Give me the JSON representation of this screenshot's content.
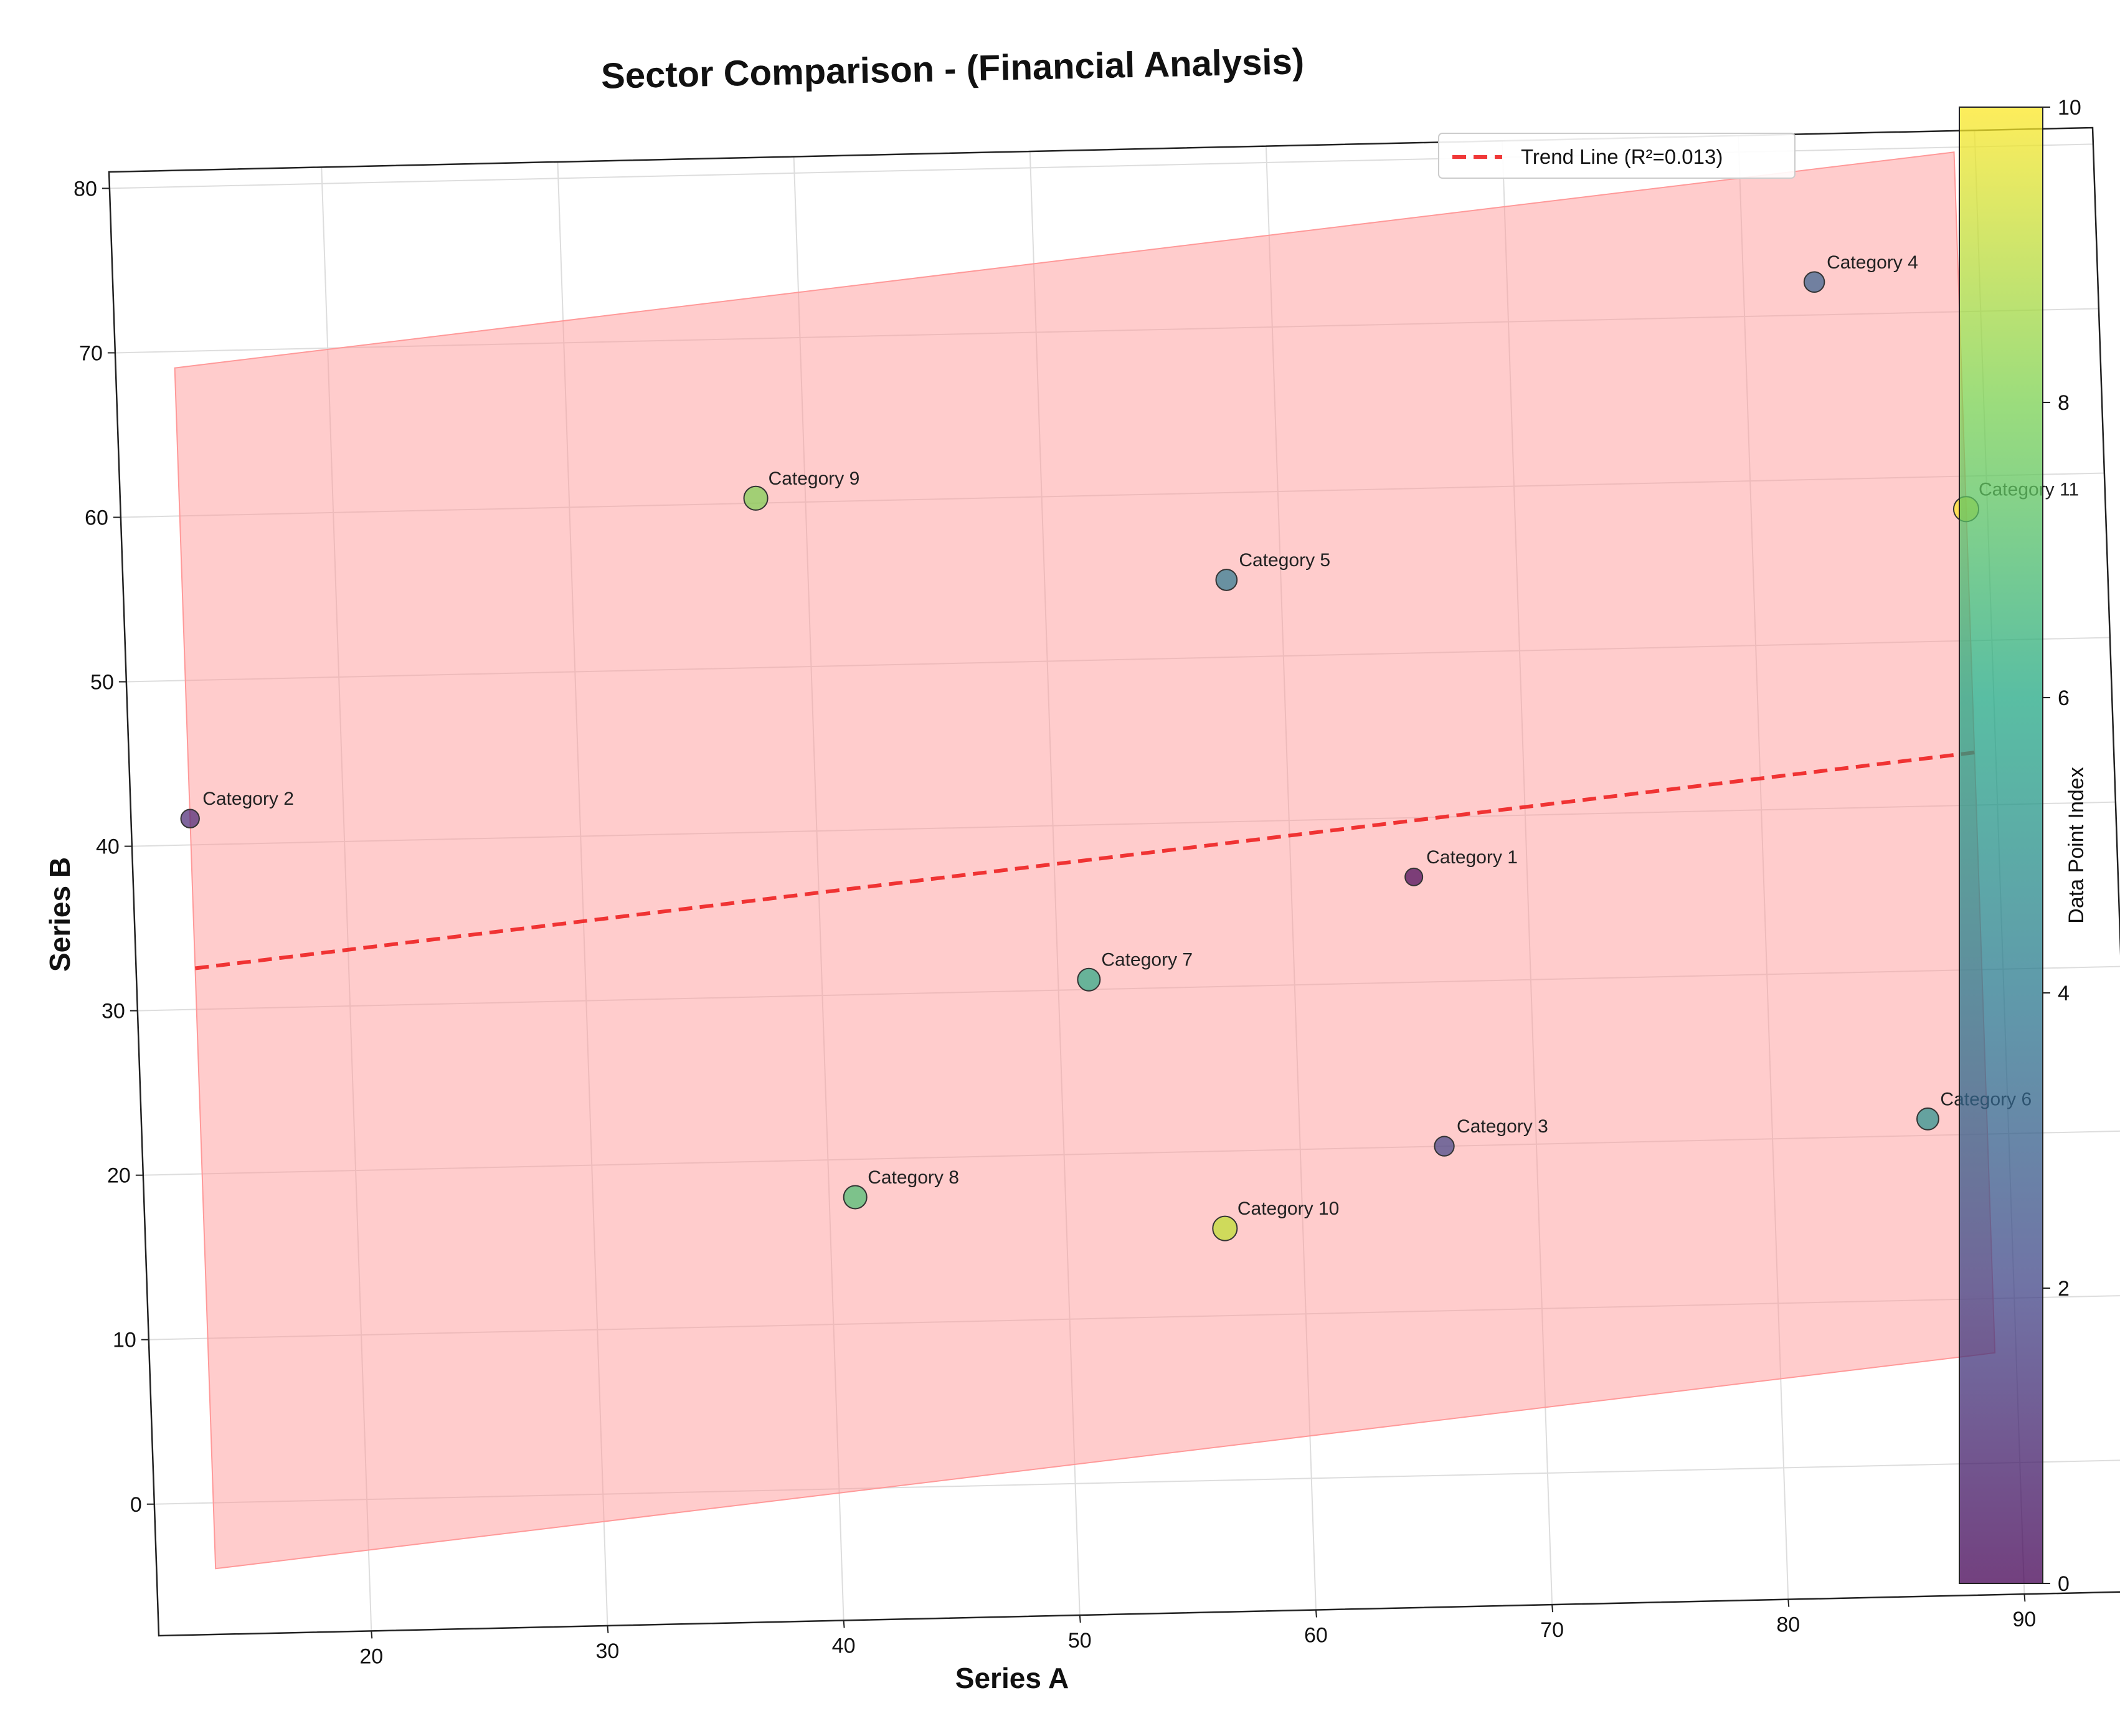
{
  "chart_data": {
    "type": "scatter",
    "title": "Sector Comparison - (Financial Analysis)",
    "xlabel": "Series A",
    "ylabel": "Series B",
    "xlim": [
      11,
      95
    ],
    "ylim": [
      -8,
      81
    ],
    "xticks": [
      20,
      30,
      40,
      50,
      60,
      70,
      80,
      90
    ],
    "yticks": [
      0,
      10,
      20,
      30,
      40,
      50,
      60,
      70,
      80
    ],
    "grid": true,
    "legend": {
      "position": "top-right",
      "entries": [
        "Trend Line (R²=0.013)"
      ]
    },
    "colorbar": {
      "label": "Data Point Index",
      "range": [
        0,
        10
      ],
      "ticks": [
        0,
        2,
        4,
        6,
        8,
        10
      ],
      "colormap": "viridis"
    },
    "points": [
      {
        "label": "Category 1",
        "x": 65.2,
        "y": 36.4,
        "color_value": 0,
        "size": 1.0
      },
      {
        "label": "Category 2",
        "x": 13.5,
        "y": 41.6,
        "color_value": 1,
        "size": 1.1
      },
      {
        "label": "Category 3",
        "x": 66.1,
        "y": 20.0,
        "color_value": 2,
        "size": 1.25
      },
      {
        "label": "Category 4",
        "x": 83.0,
        "y": 72.0,
        "color_value": 3,
        "size": 1.35
      },
      {
        "label": "Category 5",
        "x": 57.7,
        "y": 54.7,
        "color_value": 4,
        "size": 1.45
      },
      {
        "label": "Category 6",
        "x": 86.6,
        "y": 21.0,
        "color_value": 5,
        "size": 1.55
      },
      {
        "label": "Category 7",
        "x": 51.3,
        "y": 30.6,
        "color_value": 6,
        "size": 1.65
      },
      {
        "label": "Category 8",
        "x": 41.1,
        "y": 17.7,
        "color_value": 7,
        "size": 1.75
      },
      {
        "label": "Category 9",
        "x": 37.9,
        "y": 60.3,
        "color_value": 8,
        "size": 1.85
      },
      {
        "label": "Category 10",
        "x": 56.7,
        "y": 15.3,
        "color_value": 9,
        "size": 1.95
      },
      {
        "label": "Category 11",
        "x": 89.1,
        "y": 58.0,
        "color_value": 10,
        "size": 2.05
      }
    ],
    "trend_line": {
      "label": "Trend Line (R²=0.013)",
      "x": [
        13.5,
        89.1
      ],
      "y": [
        32.5,
        43.2
      ],
      "color": "#ee2222"
    },
    "band": {
      "x_range": [
        13.5,
        89.1
      ],
      "upper": [
        69.0,
        79.7
      ],
      "lower": [
        -4.0,
        6.7
      ],
      "color": "#ff9999"
    }
  }
}
